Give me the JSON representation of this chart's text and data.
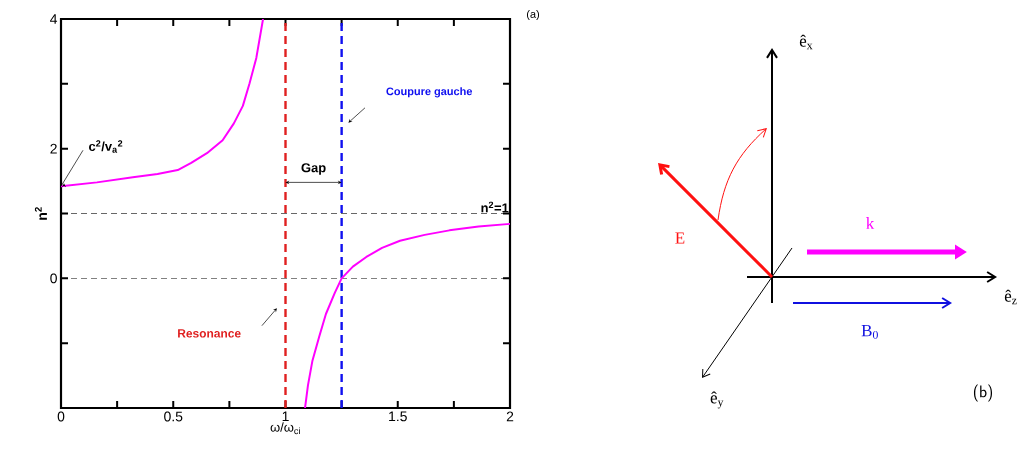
{
  "chart_data": [
    {
      "type": "line",
      "xlabel": "ω/ω$_{ci}$",
      "ylabel": "n$^{2}$",
      "x": [
        0,
        0.16,
        0.32,
        0.43,
        0.52,
        0.58,
        0.65,
        0.72,
        0.77,
        0.81,
        0.84,
        0.87,
        0.9,
        1.0,
        1.087,
        1.1,
        1.12,
        1.15,
        1.18,
        1.22,
        1.25,
        1.3,
        1.36,
        1.43,
        1.51,
        1.62,
        1.73,
        1.86,
        2
      ],
      "series": [
        {
          "color": "#ff00ff",
          "values": [
            1.42,
            1.48,
            1.56,
            1.61,
            1.67,
            1.78,
            1.93,
            2.13,
            2.39,
            2.66,
            3.01,
            3.4,
            4.0,
            null,
            -2.0,
            -1.65,
            -1.27,
            -0.9,
            -0.55,
            -0.22,
            0,
            0.18,
            0.33,
            0.47,
            0.58,
            0.67,
            0.74,
            0.8,
            0.84
          ]
        }
      ],
      "xlim": [
        0,
        2
      ],
      "ylim": [
        -2,
        4
      ],
      "xticks": [
        0,
        {
          "value": 0.25,
          "label": null
        },
        0.5,
        {
          "value": 0.75,
          "label": null
        },
        1,
        {
          "value": 1.25,
          "label": null
        },
        1.5,
        {
          "value": 1.75,
          "label": null
        },
        2
      ],
      "yticks": [
        {
          "value": -1,
          "label": null
        },
        0,
        {
          "value": 1,
          "label": null
        },
        2,
        {
          "value": 3,
          "label": null
        },
        4
      ],
      "ref_lines": [
        {
          "axis": "x",
          "value": 1,
          "label": "Resonance",
          "color": "#e02020",
          "line_style": "dashed"
        },
        {
          "axis": "x",
          "value": 1.25,
          "label": "Coupure gauche",
          "color": "#1010f0",
          "line_style": "dashed"
        },
        {
          "axis": "y",
          "value": 1,
          "label": "n$^{2}$=1",
          "color": "#000000",
          "line_style": "dashed"
        },
        {
          "axis": "y",
          "value": 0,
          "color": "#000000",
          "line_style": "dashed"
        }
      ],
      "annotations": [
        {
          "text": "c$^{2}$/v$_{a}$$^{2}$",
          "x": 0,
          "y": 1.42
        },
        "Gap",
        "(a)"
      ]
    },
    {
      "type": "other",
      "annotations": [
        "ê$_{x}$",
        "ê$_{y}$",
        "ê$_{z}$",
        "E",
        "k",
        "B$_{0}$",
        "(b)"
      ]
    }
  ]
}
